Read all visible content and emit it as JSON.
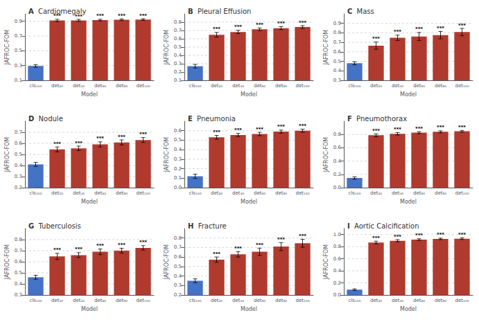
{
  "chart_data": [
    {
      "type": "bar",
      "title": "A Cardiomegaly",
      "xlabel": "Model",
      "ylabel": "JAFROC-FOM",
      "categories": [
        "cls₁₀₀",
        "det₂₀",
        "det₄₀",
        "det₆₀",
        "det₈₀",
        "det₁₀₀"
      ],
      "values": [
        0.295,
        0.91,
        0.912,
        0.916,
        0.92,
        0.922
      ],
      "errors": [
        0.018,
        0.016,
        0.013,
        0.011,
        0.011,
        0.011
      ],
      "colors": [
        "#4472C4",
        "#B03A2E",
        "#B03A2E",
        "#B03A2E",
        "#B03A2E",
        "#B03A2E"
      ],
      "ylim": [
        0.1,
        1.0
      ],
      "yticks": [
        0.1,
        0.3,
        0.5,
        0.7,
        0.9
      ],
      "grid": true,
      "annotations": [
        {
          "category": "det₂₀",
          "text": "***"
        },
        {
          "category": "det₄₀",
          "text": "***"
        },
        {
          "category": "det₆₀",
          "text": "***"
        },
        {
          "category": "det₈₀",
          "text": "***"
        },
        {
          "category": "det₁₀₀",
          "text": "***"
        }
      ]
    },
    {
      "type": "bar",
      "title": "B Pleural Effusion",
      "xlabel": "Model",
      "ylabel": "JAFROC-FOM",
      "categories": [
        "cls₁₀₀",
        "det₂₀",
        "det₄₀",
        "det₆₀",
        "det₈₀",
        "det₁₀₀"
      ],
      "values": [
        0.27,
        0.648,
        0.682,
        0.714,
        0.728,
        0.742
      ],
      "errors": [
        0.022,
        0.028,
        0.02,
        0.016,
        0.018,
        0.016
      ],
      "colors": [
        "#4472C4",
        "#B03A2E",
        "#B03A2E",
        "#B03A2E",
        "#B03A2E",
        "#B03A2E"
      ],
      "ylim": [
        0.1,
        0.9
      ],
      "yticks": [
        0.1,
        0.2,
        0.3,
        0.4,
        0.5,
        0.6,
        0.7,
        0.8
      ],
      "grid": true,
      "annotations": [
        {
          "category": "det₂₀",
          "text": "***"
        },
        {
          "category": "det₄₀",
          "text": "***"
        },
        {
          "category": "det₆₀",
          "text": "***"
        },
        {
          "category": "det₈₀",
          "text": "***"
        },
        {
          "category": "det₁₀₀",
          "text": "***"
        }
      ]
    },
    {
      "type": "bar",
      "title": "C Mass",
      "xlabel": "Model",
      "ylabel": "JAFROC-FOM",
      "categories": [
        "cls₁₀₀",
        "det₂₀",
        "det₄₀",
        "det₆₀",
        "det₈₀",
        "det₁₀₀"
      ],
      "values": [
        0.48,
        0.665,
        0.748,
        0.762,
        0.776,
        0.808
      ],
      "errors": [
        0.016,
        0.038,
        0.028,
        0.042,
        0.038,
        0.038
      ],
      "colors": [
        "#4472C4",
        "#B03A2E",
        "#B03A2E",
        "#B03A2E",
        "#B03A2E",
        "#B03A2E"
      ],
      "ylim": [
        0.3,
        1.0
      ],
      "yticks": [
        0.3,
        0.4,
        0.5,
        0.6,
        0.7,
        0.8,
        0.9
      ],
      "grid": true,
      "annotations": [
        {
          "category": "det₂₀",
          "text": "***"
        },
        {
          "category": "det₄₀",
          "text": "***"
        },
        {
          "category": "det₆₀",
          "text": "***"
        },
        {
          "category": "det₈₀",
          "text": "***"
        },
        {
          "category": "det₁₀₀",
          "text": "***"
        }
      ]
    },
    {
      "type": "bar",
      "title": "D Nodule",
      "xlabel": "Model",
      "ylabel": "JAFROC-FOM",
      "categories": [
        "cls₁₀₀",
        "det₂₀",
        "det₄₀",
        "det₆₀",
        "det₈₀",
        "det₁₀₀"
      ],
      "values": [
        0.41,
        0.545,
        0.555,
        0.59,
        0.608,
        0.63
      ],
      "errors": [
        0.018,
        0.022,
        0.02,
        0.023,
        0.023,
        0.022
      ],
      "colors": [
        "#4472C4",
        "#B03A2E",
        "#B03A2E",
        "#B03A2E",
        "#B03A2E",
        "#B03A2E"
      ],
      "ylim": [
        0.2,
        0.8
      ],
      "yticks": [
        0.2,
        0.3,
        0.4,
        0.5,
        0.6,
        0.7
      ],
      "grid": true,
      "annotations": [
        {
          "category": "det₂₀",
          "text": "***"
        },
        {
          "category": "det₄₀",
          "text": "***"
        },
        {
          "category": "det₆₀",
          "text": "***"
        },
        {
          "category": "det₈₀",
          "text": "***"
        },
        {
          "category": "det₁₀₀",
          "text": "***"
        }
      ]
    },
    {
      "type": "bar",
      "title": "E Pneumonia",
      "xlabel": "Model",
      "ylabel": "JAFROC-FOM",
      "categories": [
        "cls₁₀₀",
        "det₂₀",
        "det₄₀",
        "det₆₀",
        "det₈₀",
        "det₁₀₀"
      ],
      "values": [
        0.12,
        0.53,
        0.555,
        0.565,
        0.59,
        0.6
      ],
      "errors": [
        0.022,
        0.02,
        0.016,
        0.018,
        0.016,
        0.016
      ],
      "colors": [
        "#4472C4",
        "#B03A2E",
        "#B03A2E",
        "#B03A2E",
        "#B03A2E",
        "#B03A2E"
      ],
      "ylim": [
        0.0,
        0.7
      ],
      "yticks": [
        {
          "value": 0.0,
          "label": "0.0"
        },
        0.1,
        0.2,
        0.3,
        0.4,
        0.5,
        0.6
      ],
      "grid": true,
      "annotations": [
        {
          "category": "det₂₀",
          "text": "***"
        },
        {
          "category": "det₄₀",
          "text": "***"
        },
        {
          "category": "det₆₀",
          "text": "***"
        },
        {
          "category": "det₈₀",
          "text": "***"
        },
        {
          "category": "det₁₀₀",
          "text": "***"
        }
      ]
    },
    {
      "type": "bar",
      "title": "F Pneumothorax",
      "xlabel": "Model",
      "ylabel": "JAFROC-FOM",
      "categories": [
        "cls₁₀₀",
        "det₂₀",
        "det₄₀",
        "det₆₀",
        "det₈₀",
        "det₁₀₀"
      ],
      "values": [
        0.145,
        0.788,
        0.81,
        0.828,
        0.84,
        0.848
      ],
      "errors": [
        0.018,
        0.022,
        0.018,
        0.015,
        0.015,
        0.013
      ],
      "colors": [
        "#4472C4",
        "#B03A2E",
        "#B03A2E",
        "#B03A2E",
        "#B03A2E",
        "#B03A2E"
      ],
      "ylim": [
        0.0,
        1.0
      ],
      "yticks": [
        {
          "value": 0.0,
          "label": "0.0"
        },
        0.2,
        0.4,
        0.6,
        0.8
      ],
      "grid": true,
      "annotations": [
        {
          "category": "det₂₀",
          "text": "***"
        },
        {
          "category": "det₄₀",
          "text": "***"
        },
        {
          "category": "det₆₀",
          "text": "***"
        },
        {
          "category": "det₈₀",
          "text": "***"
        },
        {
          "category": "det₁₀₀",
          "text": "***"
        }
      ]
    },
    {
      "type": "bar",
      "title": "G Tuberculosis",
      "xlabel": "Model",
      "ylabel": "JAFROC-FOM",
      "categories": [
        "cls₁₀₀",
        "det₂₀",
        "det₄₀",
        "det₆₀",
        "det₈₀",
        "det₁₀₀"
      ],
      "values": [
        0.46,
        0.648,
        0.66,
        0.69,
        0.7,
        0.725
      ],
      "errors": [
        0.018,
        0.028,
        0.022,
        0.025,
        0.022,
        0.02
      ],
      "colors": [
        "#4472C4",
        "#B03A2E",
        "#B03A2E",
        "#B03A2E",
        "#B03A2E",
        "#B03A2E"
      ],
      "ylim": [
        0.3,
        0.9
      ],
      "yticks": [
        0.3,
        0.4,
        0.5,
        0.6,
        0.7,
        0.8
      ],
      "grid": true,
      "annotations": [
        {
          "category": "det₂₀",
          "text": "***"
        },
        {
          "category": "det₄₀",
          "text": "***"
        },
        {
          "category": "det₆₀",
          "text": "***"
        },
        {
          "category": "det₈₀",
          "text": "***"
        },
        {
          "category": "det₁₀₀",
          "text": "***"
        }
      ]
    },
    {
      "type": "bar",
      "title": "H Fracture",
      "xlabel": "Model",
      "ylabel": "JAFROC-FOM",
      "categories": [
        "cls₁₀₀",
        "det₂₀",
        "det₄₀",
        "det₆₀",
        "det₈₀",
        "det₁₀₀"
      ],
      "values": [
        0.35,
        0.572,
        0.628,
        0.655,
        0.71,
        0.745
      ],
      "errors": [
        0.02,
        0.028,
        0.028,
        0.038,
        0.042,
        0.042
      ],
      "colors": [
        "#4472C4",
        "#B03A2E",
        "#B03A2E",
        "#B03A2E",
        "#B03A2E",
        "#B03A2E"
      ],
      "ylim": [
        0.2,
        0.9
      ],
      "yticks": [
        0.2,
        0.3,
        0.4,
        0.5,
        0.6,
        0.7,
        0.8
      ],
      "grid": true,
      "annotations": [
        {
          "category": "det₂₀",
          "text": "***"
        },
        {
          "category": "det₄₀",
          "text": "***"
        },
        {
          "category": "det₆₀",
          "text": "***"
        },
        {
          "category": "det₈₀",
          "text": "***"
        },
        {
          "category": "det₁₀₀",
          "text": "***"
        }
      ]
    },
    {
      "type": "bar",
      "title": "I Aortic Calcification",
      "xlabel": "Model",
      "ylabel": "JAFROC-FOM",
      "categories": [
        "cls₁₀₀",
        "det₂₀",
        "det₄₀",
        "det₆₀",
        "det₈₀",
        "det₁₀₀"
      ],
      "values": [
        0.088,
        0.868,
        0.898,
        0.918,
        0.928,
        0.932
      ],
      "errors": [
        0.013,
        0.022,
        0.018,
        0.013,
        0.013,
        0.013
      ],
      "colors": [
        "#4472C4",
        "#B03A2E",
        "#B03A2E",
        "#B03A2E",
        "#B03A2E",
        "#B03A2E"
      ],
      "ylim": [
        0.0,
        1.1
      ],
      "yticks": [
        {
          "value": 0.0,
          "label": "0.0"
        },
        0.2,
        0.4,
        0.6,
        0.8,
        {
          "value": 1.0,
          "label": "1.0"
        }
      ],
      "grid": true,
      "annotations": [
        {
          "category": "det₂₀",
          "text": "***"
        },
        {
          "category": "det₄₀",
          "text": "***"
        },
        {
          "category": "det₆₀",
          "text": "***"
        },
        {
          "category": "det₈₀",
          "text": "***"
        },
        {
          "category": "det₁₀₀",
          "text": "***"
        }
      ]
    }
  ]
}
